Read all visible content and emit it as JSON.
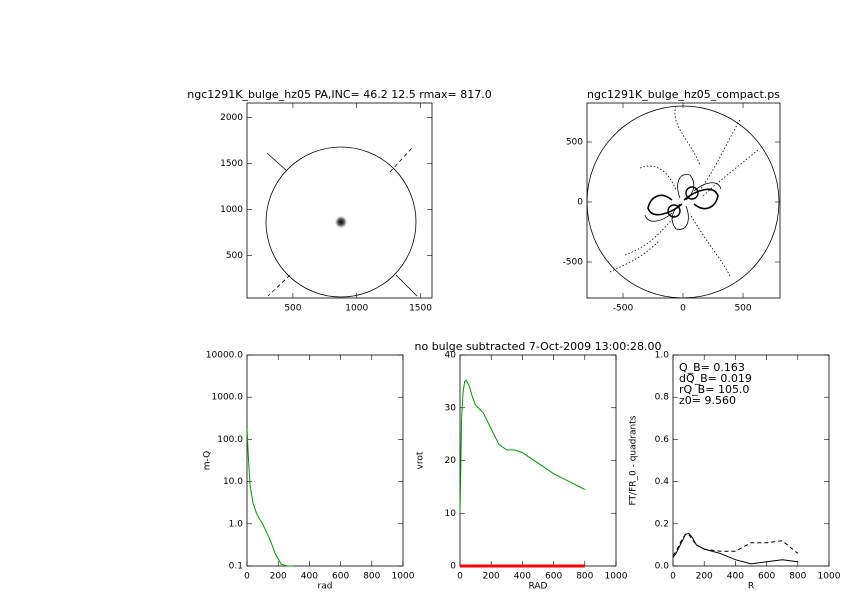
{
  "chart_data": [
    {
      "type": "image",
      "title": "ngc1291K_bulge_hz05 PA,INC= 46.2 12.5 rmax= 817.0",
      "xlim": [
        140,
        1590
      ],
      "ylim": [
        40,
        2160
      ],
      "xticks": [
        500,
        1000,
        1500
      ],
      "yticks": [
        500,
        1000,
        1500,
        2000
      ]
    },
    {
      "type": "contour",
      "title": "ngc1291K_bulge_hz05_compact.ps",
      "xlim": [
        -800,
        808
      ],
      "ylim": [
        -800,
        825
      ],
      "xticks": [
        -500,
        0,
        500
      ],
      "yticks": [
        -500,
        0,
        500
      ]
    },
    {
      "type": "line",
      "log_y": true,
      "xlabel": "rad",
      "ylabel": "m-Q",
      "xlim": [
        0,
        1000
      ],
      "ylim": [
        0.1,
        10000
      ],
      "xticks": [
        0,
        200,
        400,
        600,
        800,
        1000
      ],
      "yticks": [
        0.1,
        {
          "value": 1,
          "label": "1.0"
        },
        {
          "value": 10,
          "label": "10.0"
        },
        {
          "value": 100,
          "label": "100.0"
        },
        {
          "value": 1000,
          "label": "1000.0"
        },
        {
          "value": 10000,
          "label": "10000.0"
        }
      ],
      "series": [
        {
          "color": "#009900",
          "x": [
            0,
            10,
            20,
            40,
            60,
            80,
            100,
            120,
            150,
            180,
            220,
            260,
            300
          ],
          "values": [
            180,
            30,
            8,
            3,
            1.8,
            1.3,
            1.0,
            0.7,
            0.4,
            0.2,
            0.11,
            0.1,
            0.1
          ]
        }
      ]
    },
    {
      "type": "line",
      "title": "no bulge subtracted    7-Oct-2009 13:00:28.00",
      "xlabel": "RAD",
      "ylabel": "vrot",
      "xlim": [
        0,
        1000
      ],
      "ylim": [
        0,
        40
      ],
      "xticks": [
        0,
        200,
        400,
        600,
        800,
        1000
      ],
      "yticks": [
        0,
        10,
        20,
        30,
        40
      ],
      "series": [
        {
          "color": "#009900",
          "x": [
            0,
            10,
            20,
            30,
            40,
            60,
            80,
            100,
            150,
            200,
            250,
            300,
            350,
            400,
            450,
            500,
            600,
            700,
            800
          ],
          "values": [
            10,
            28,
            33,
            35,
            35.2,
            34,
            32,
            30.5,
            29,
            26,
            23,
            22,
            22,
            21.5,
            20.5,
            19.5,
            17.5,
            16,
            14.5
          ]
        },
        {
          "color": "#ff0000",
          "x": [
            0,
            200,
            400,
            600,
            800
          ],
          "values": [
            0,
            0,
            0,
            0,
            0
          ]
        }
      ]
    },
    {
      "type": "line",
      "xlabel": "R",
      "ylabel": "FT/FR_0 - quadrants",
      "xlim": [
        0,
        1000
      ],
      "ylim": [
        0,
        1
      ],
      "xticks": [
        0,
        200,
        400,
        600,
        800,
        1000
      ],
      "yticks": [
        {
          "value": 0,
          "label": "0.0"
        },
        0.2,
        0.4,
        0.6,
        0.8,
        {
          "value": 1,
          "label": "1.0"
        }
      ],
      "annotations": [
        "Q_B=  0.163",
        "dQ_B=  0.019",
        "rQ_B=  105.0",
        "z0=  9.560"
      ],
      "series": [
        {
          "color": "#000000",
          "x": [
            0,
            20,
            40,
            60,
            80,
            100,
            120,
            150,
            200,
            300,
            400,
            500,
            600,
            700,
            800
          ],
          "values": [
            0.04,
            0.06,
            0.09,
            0.12,
            0.15,
            0.155,
            0.14,
            0.1,
            0.08,
            0.06,
            0.03,
            0.01,
            0.02,
            0.03,
            0.02
          ]
        },
        {
          "color": "#000000",
          "dashed": true,
          "x": [
            0,
            20,
            40,
            60,
            80,
            100,
            120,
            150,
            200,
            300,
            400,
            500,
            600,
            700,
            800
          ],
          "values": [
            0.05,
            0.07,
            0.1,
            0.13,
            0.15,
            0.15,
            0.13,
            0.1,
            0.08,
            0.07,
            0.07,
            0.11,
            0.11,
            0.12,
            0.06
          ]
        }
      ]
    }
  ]
}
